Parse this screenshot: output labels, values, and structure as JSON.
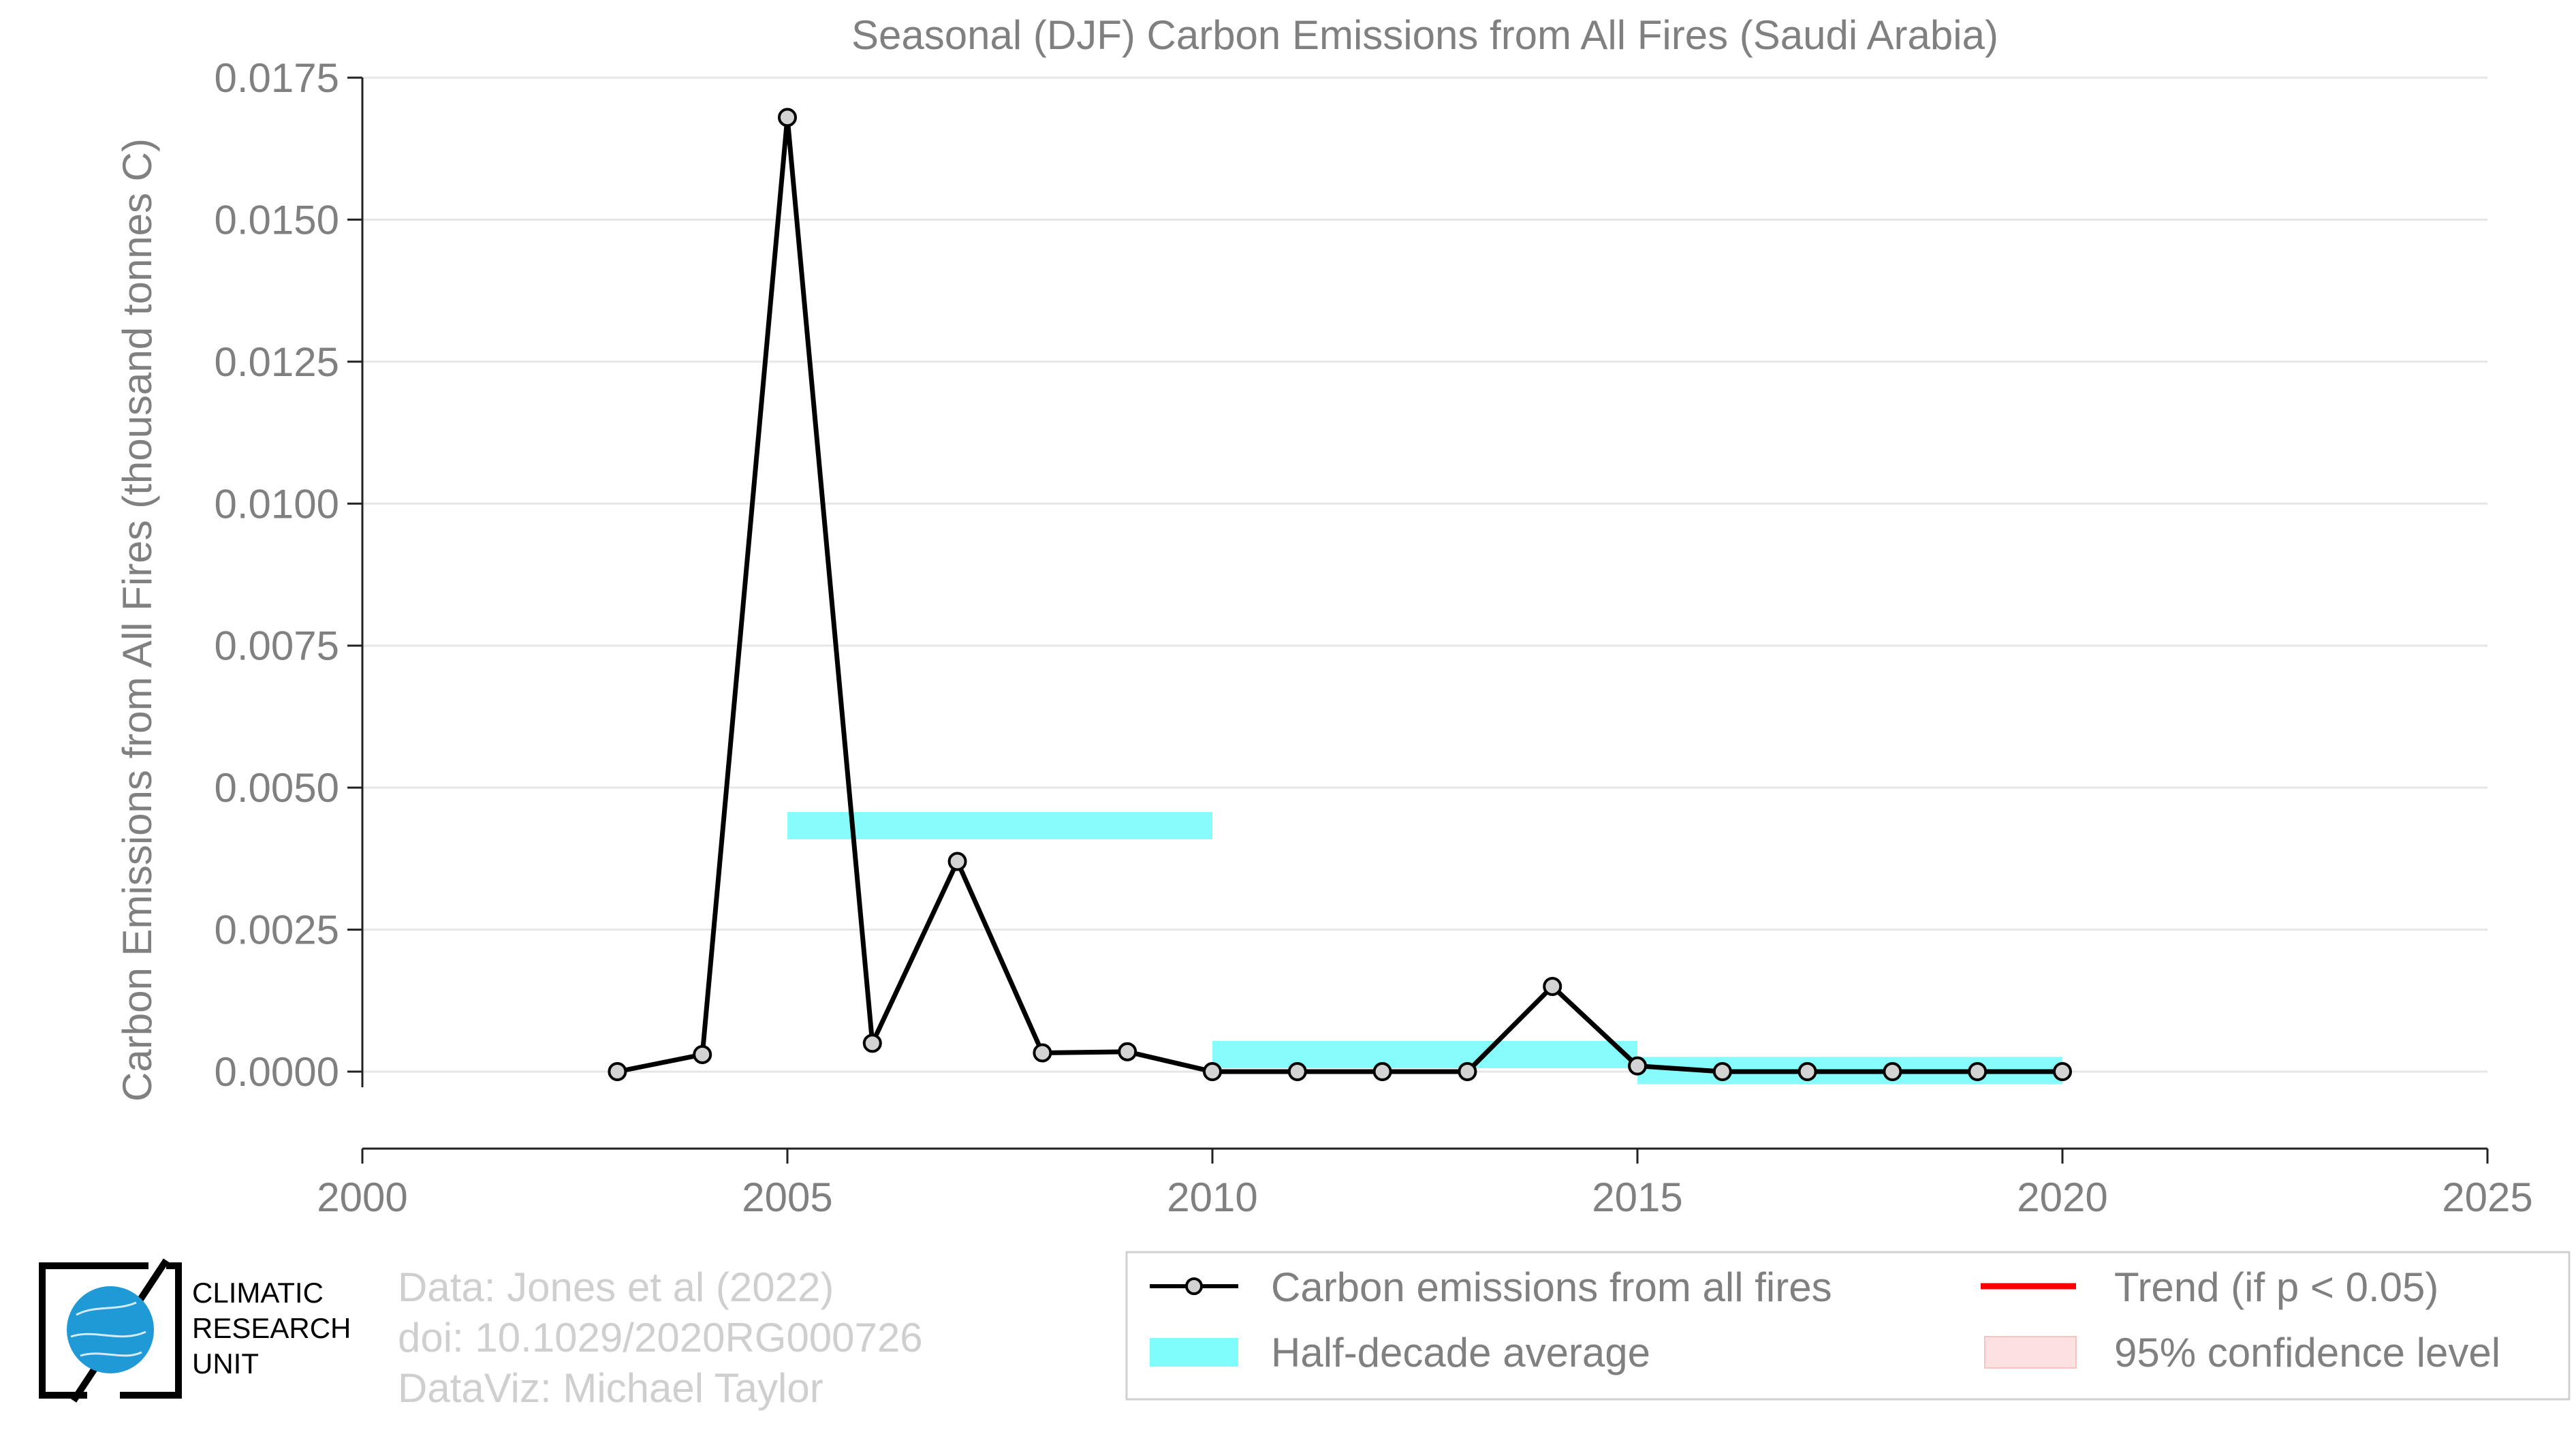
{
  "chart_data": {
    "type": "line",
    "title": "Seasonal (DJF) Carbon Emissions from All Fires (Saudi Arabia)",
    "xlabel": "",
    "ylabel": "Carbon Emissions from All Fires (thousand tonnes C)",
    "xlim": [
      2000,
      2025
    ],
    "ylim": [
      -0.0013,
      0.0175
    ],
    "x_ticks": [
      2000,
      2005,
      2010,
      2015,
      2020,
      2025
    ],
    "x_tick_labels": [
      "2000",
      "2005",
      "2010",
      "2015",
      "2020",
      "2025"
    ],
    "y_ticks": [
      0.0,
      0.0025,
      0.005,
      0.0075,
      0.01,
      0.0125,
      0.015,
      0.0175
    ],
    "y_tick_labels": [
      "0.0000",
      "0.0025",
      "0.0050",
      "0.0075",
      "0.0100",
      "0.0125",
      "0.0150",
      "0.0175"
    ],
    "grid": "horizontal",
    "legend_position": "bottom-right",
    "series": [
      {
        "name": "Carbon emissions from all fires",
        "color": "#000000",
        "marker_fill": "#d3d3d3",
        "x": [
          2003,
          2004,
          2005,
          2006,
          2007,
          2008,
          2009,
          2010,
          2011,
          2012,
          2013,
          2014,
          2015,
          2016,
          2017,
          2018,
          2019,
          2020
        ],
        "y": [
          0.0,
          0.0003,
          0.0168,
          0.0005,
          0.0037,
          0.00033,
          0.00035,
          0.0,
          0.0,
          0.0,
          0.0,
          0.0015,
          0.0001,
          0.0,
          0.0,
          0.0,
          0.0,
          0.0
        ]
      }
    ],
    "half_decade_average": {
      "name": "Half-decade average",
      "color": "#7ffcfc",
      "segments": [
        {
          "x_start": 2005,
          "x_end": 2010,
          "value": 0.00433
        },
        {
          "x_start": 2010,
          "x_end": 2015,
          "value": 0.0003
        },
        {
          "x_start": 2015,
          "x_end": 2020,
          "value": 2e-05
        }
      ]
    },
    "legend": [
      {
        "label": "Carbon emissions from all fires",
        "kind": "line-marker",
        "color": "#000000"
      },
      {
        "label": "Half-decade average",
        "kind": "band",
        "color": "#7ffcfc"
      },
      {
        "label": "Trend (if p < 0.05)",
        "kind": "line",
        "color": "#ff0000"
      },
      {
        "label": "95% confidence level",
        "kind": "band",
        "color": "#fde0e0"
      }
    ]
  },
  "logo": {
    "lines": [
      "CLIMATIC",
      "RESEARCH",
      "UNIT"
    ],
    "globe_color": "#1f9ad6"
  },
  "credits": {
    "lines": [
      "Data: Jones et al (2022)",
      "doi: 10.1029/2020RG000726",
      "DataViz: Michael Taylor"
    ]
  }
}
